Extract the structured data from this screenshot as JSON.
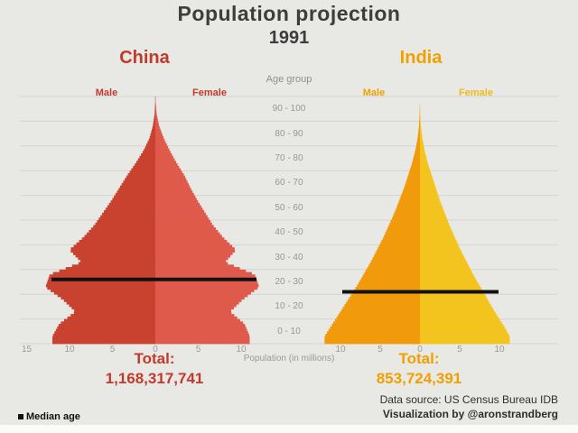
{
  "header": {
    "title": "Population projection",
    "year": "1991"
  },
  "colors": {
    "china_text": "#c13a2b",
    "china_male": "#c8422f",
    "china_female": "#e05a4b",
    "india_text": "#f0a000",
    "india_male": "#f09a0c",
    "india_female": "#f4c41e",
    "india_female_label": "#f3b91d",
    "grid": "#d5d4d0",
    "median_line": "#111111",
    "background": "#e8e8e5"
  },
  "china": {
    "name": "China",
    "male_label": "Male",
    "female_label": "Female",
    "total_label": "Total:",
    "total": "1,168,317,741"
  },
  "india": {
    "name": "India",
    "male_label": "Male",
    "female_label": "Female",
    "total_label": "Total:",
    "total": "853,724,391"
  },
  "axis": {
    "age_group_label": "Age group",
    "age_groups": [
      "90 - 100",
      "80 - 90",
      "70 - 80",
      "60 - 70",
      "50 - 60",
      "40 - 50",
      "30 - 40",
      "20 - 30",
      "10 - 20",
      "0 - 10"
    ],
    "population_label": "Population (in millions)",
    "china_ticks": [
      {
        "label": "15",
        "m": -15
      },
      {
        "label": "10",
        "m": -10
      },
      {
        "label": "5",
        "m": -5
      },
      {
        "label": "0",
        "m": 0
      },
      {
        "label": "5",
        "m": 5
      },
      {
        "label": "10",
        "m": 10
      }
    ],
    "india_ticks": [
      {
        "label": "10",
        "m": -10
      },
      {
        "label": "5",
        "m": -5
      },
      {
        "label": "0",
        "m": 0
      },
      {
        "label": "5",
        "m": 5
      },
      {
        "label": "10",
        "m": 10
      }
    ]
  },
  "footer": {
    "source": "Data source: US Census Bureau IDB",
    "credit": "Visualization by @aronstrandberg"
  },
  "legend": {
    "median_age": "Median age"
  },
  "chart_data": {
    "type": "population_pyramid",
    "title": "Population projection 1991",
    "unit": "millions of people per single year of age",
    "xlabel": "Population (in millions)",
    "age_band_size": 5,
    "age_bands": [
      "0-4",
      "5-9",
      "10-14",
      "15-19",
      "20-24",
      "25-29",
      "30-34",
      "35-39",
      "40-44",
      "45-49",
      "50-54",
      "55-59",
      "60-64",
      "65-69",
      "70-74",
      "75-79",
      "80-84",
      "85-89",
      "90-94",
      "95-99"
    ],
    "x_range_millions": {
      "china": [
        -15,
        10
      ],
      "india": [
        -10,
        10
      ]
    },
    "countries": [
      {
        "name": "China",
        "total": 1168317741,
        "median_age": 26,
        "male": [
          12.0,
          11.2,
          9.3,
          10.8,
          12.8,
          12.3,
          8.6,
          10.0,
          8.4,
          7.1,
          6.1,
          5.1,
          4.2,
          3.3,
          2.3,
          1.4,
          0.7,
          0.3,
          0.08,
          0.02
        ],
        "female": [
          11.0,
          10.4,
          8.7,
          10.2,
          12.1,
          11.6,
          8.1,
          9.4,
          7.9,
          6.7,
          5.8,
          4.9,
          4.1,
          3.4,
          2.5,
          1.7,
          1.0,
          0.45,
          0.15,
          0.04
        ]
      },
      {
        "name": "India",
        "total": 853724391,
        "median_age": 21,
        "male": [
          12.0,
          11.0,
          10.0,
          9.0,
          8.0,
          7.1,
          6.2,
          5.4,
          4.6,
          3.9,
          3.2,
          2.6,
          2.0,
          1.5,
          1.0,
          0.6,
          0.3,
          0.12,
          0.04,
          0.01
        ],
        "female": [
          11.3,
          10.4,
          9.4,
          8.5,
          7.6,
          6.7,
          5.9,
          5.1,
          4.4,
          3.7,
          3.1,
          2.5,
          2.0,
          1.5,
          1.0,
          0.6,
          0.3,
          0.12,
          0.04,
          0.01
        ]
      }
    ]
  }
}
